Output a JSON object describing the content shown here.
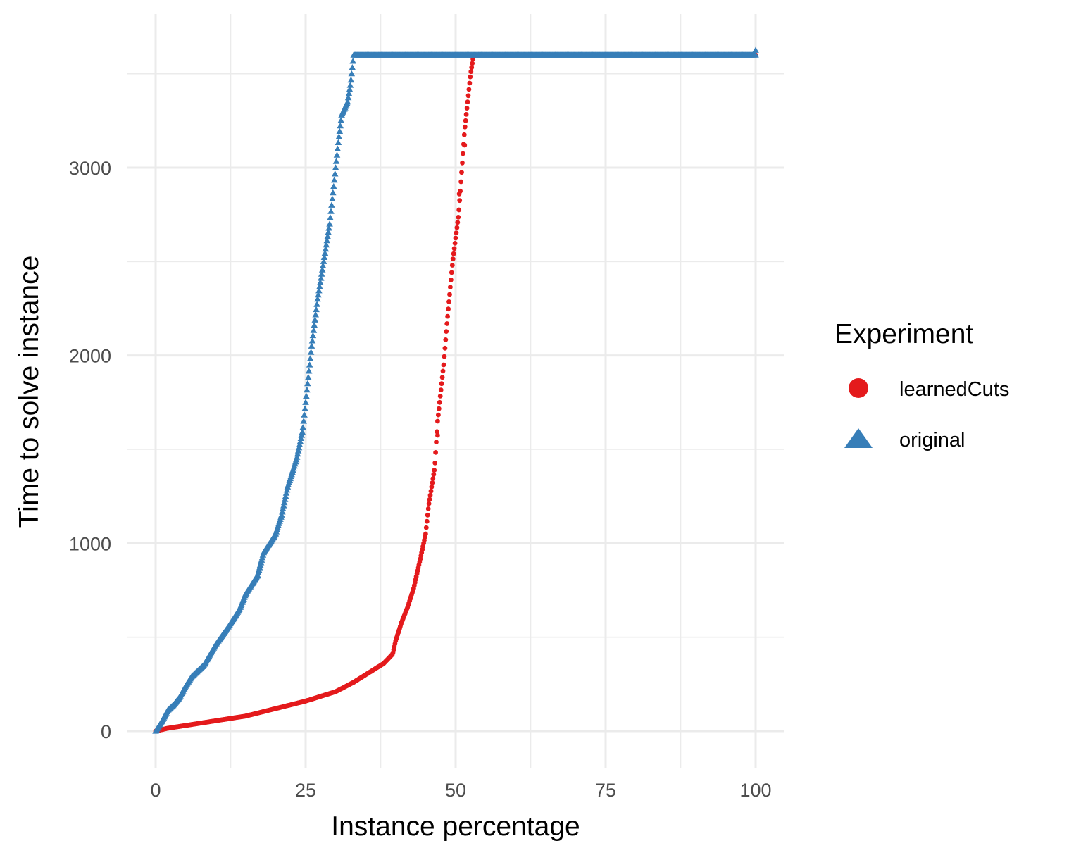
{
  "chart_data": {
    "type": "scatter",
    "xlabel": "Instance percentage",
    "ylabel": "Time to solve instance",
    "xlim": [
      -10,
      105
    ],
    "ylim": [
      -200,
      3720
    ],
    "x_ticks": [
      0,
      25,
      50,
      75,
      100
    ],
    "y_ticks": [
      0,
      1000,
      2000,
      3000
    ],
    "x_tick_labels": [
      "0",
      "25",
      "50",
      "75",
      "100"
    ],
    "y_tick_labels": [
      "0",
      "1000",
      "2000",
      "3000"
    ],
    "grid": true,
    "legend": {
      "title": "Experiment",
      "position": "right",
      "entries": [
        {
          "label": "learnedCuts",
          "shape": "circle",
          "color": "#e41a1c"
        },
        {
          "label": "original",
          "shape": "triangle",
          "color": "#377eb8"
        }
      ]
    },
    "series": [
      {
        "name": "learnedCuts",
        "color": "#e41a1c",
        "shape": "circle",
        "curve": [
          [
            0,
            0
          ],
          [
            2,
            15
          ],
          [
            5,
            30
          ],
          [
            10,
            55
          ],
          [
            15,
            80
          ],
          [
            20,
            120
          ],
          [
            25,
            160
          ],
          [
            30,
            210
          ],
          [
            33,
            260
          ],
          [
            36,
            320
          ],
          [
            38,
            360
          ],
          [
            39.5,
            410
          ],
          [
            40,
            480
          ],
          [
            41,
            580
          ],
          [
            42,
            660
          ],
          [
            43,
            760
          ],
          [
            44,
            900
          ],
          [
            45,
            1050
          ],
          [
            45.5,
            1200
          ],
          [
            46.5,
            1400
          ],
          [
            47,
            1650
          ],
          [
            48,
            1950
          ],
          [
            48.5,
            2150
          ],
          [
            49.5,
            2500
          ],
          [
            50.5,
            2750
          ],
          [
            51.5,
            3200
          ],
          [
            52.5,
            3500
          ],
          [
            53,
            3600
          ],
          [
            100,
            3600
          ]
        ],
        "outliers": [
          [
            47,
            1575
          ],
          [
            50.6,
            2860
          ],
          [
            51.5,
            3120
          ]
        ]
      },
      {
        "name": "original",
        "color": "#377eb8",
        "shape": "triangle",
        "curve": [
          [
            0,
            0
          ],
          [
            1,
            50
          ],
          [
            2,
            110
          ],
          [
            3,
            140
          ],
          [
            4,
            180
          ],
          [
            5,
            240
          ],
          [
            6,
            290
          ],
          [
            8,
            350
          ],
          [
            10,
            460
          ],
          [
            12,
            550
          ],
          [
            14,
            650
          ],
          [
            15,
            730
          ],
          [
            17,
            830
          ],
          [
            18,
            950
          ],
          [
            20,
            1050
          ],
          [
            21,
            1150
          ],
          [
            22,
            1300
          ],
          [
            23.5,
            1450
          ],
          [
            24.5,
            1600
          ],
          [
            25,
            1750
          ],
          [
            25.5,
            1900
          ],
          [
            26,
            2050
          ],
          [
            27,
            2300
          ],
          [
            28,
            2500
          ],
          [
            29,
            2700
          ],
          [
            29.5,
            2850
          ],
          [
            30,
            3000
          ],
          [
            30.5,
            3150
          ],
          [
            31,
            3280
          ],
          [
            32,
            3350
          ],
          [
            32.5,
            3450
          ],
          [
            33,
            3600
          ],
          [
            100,
            3600
          ]
        ],
        "outliers": [
          [
            100,
            3625
          ]
        ]
      }
    ]
  }
}
